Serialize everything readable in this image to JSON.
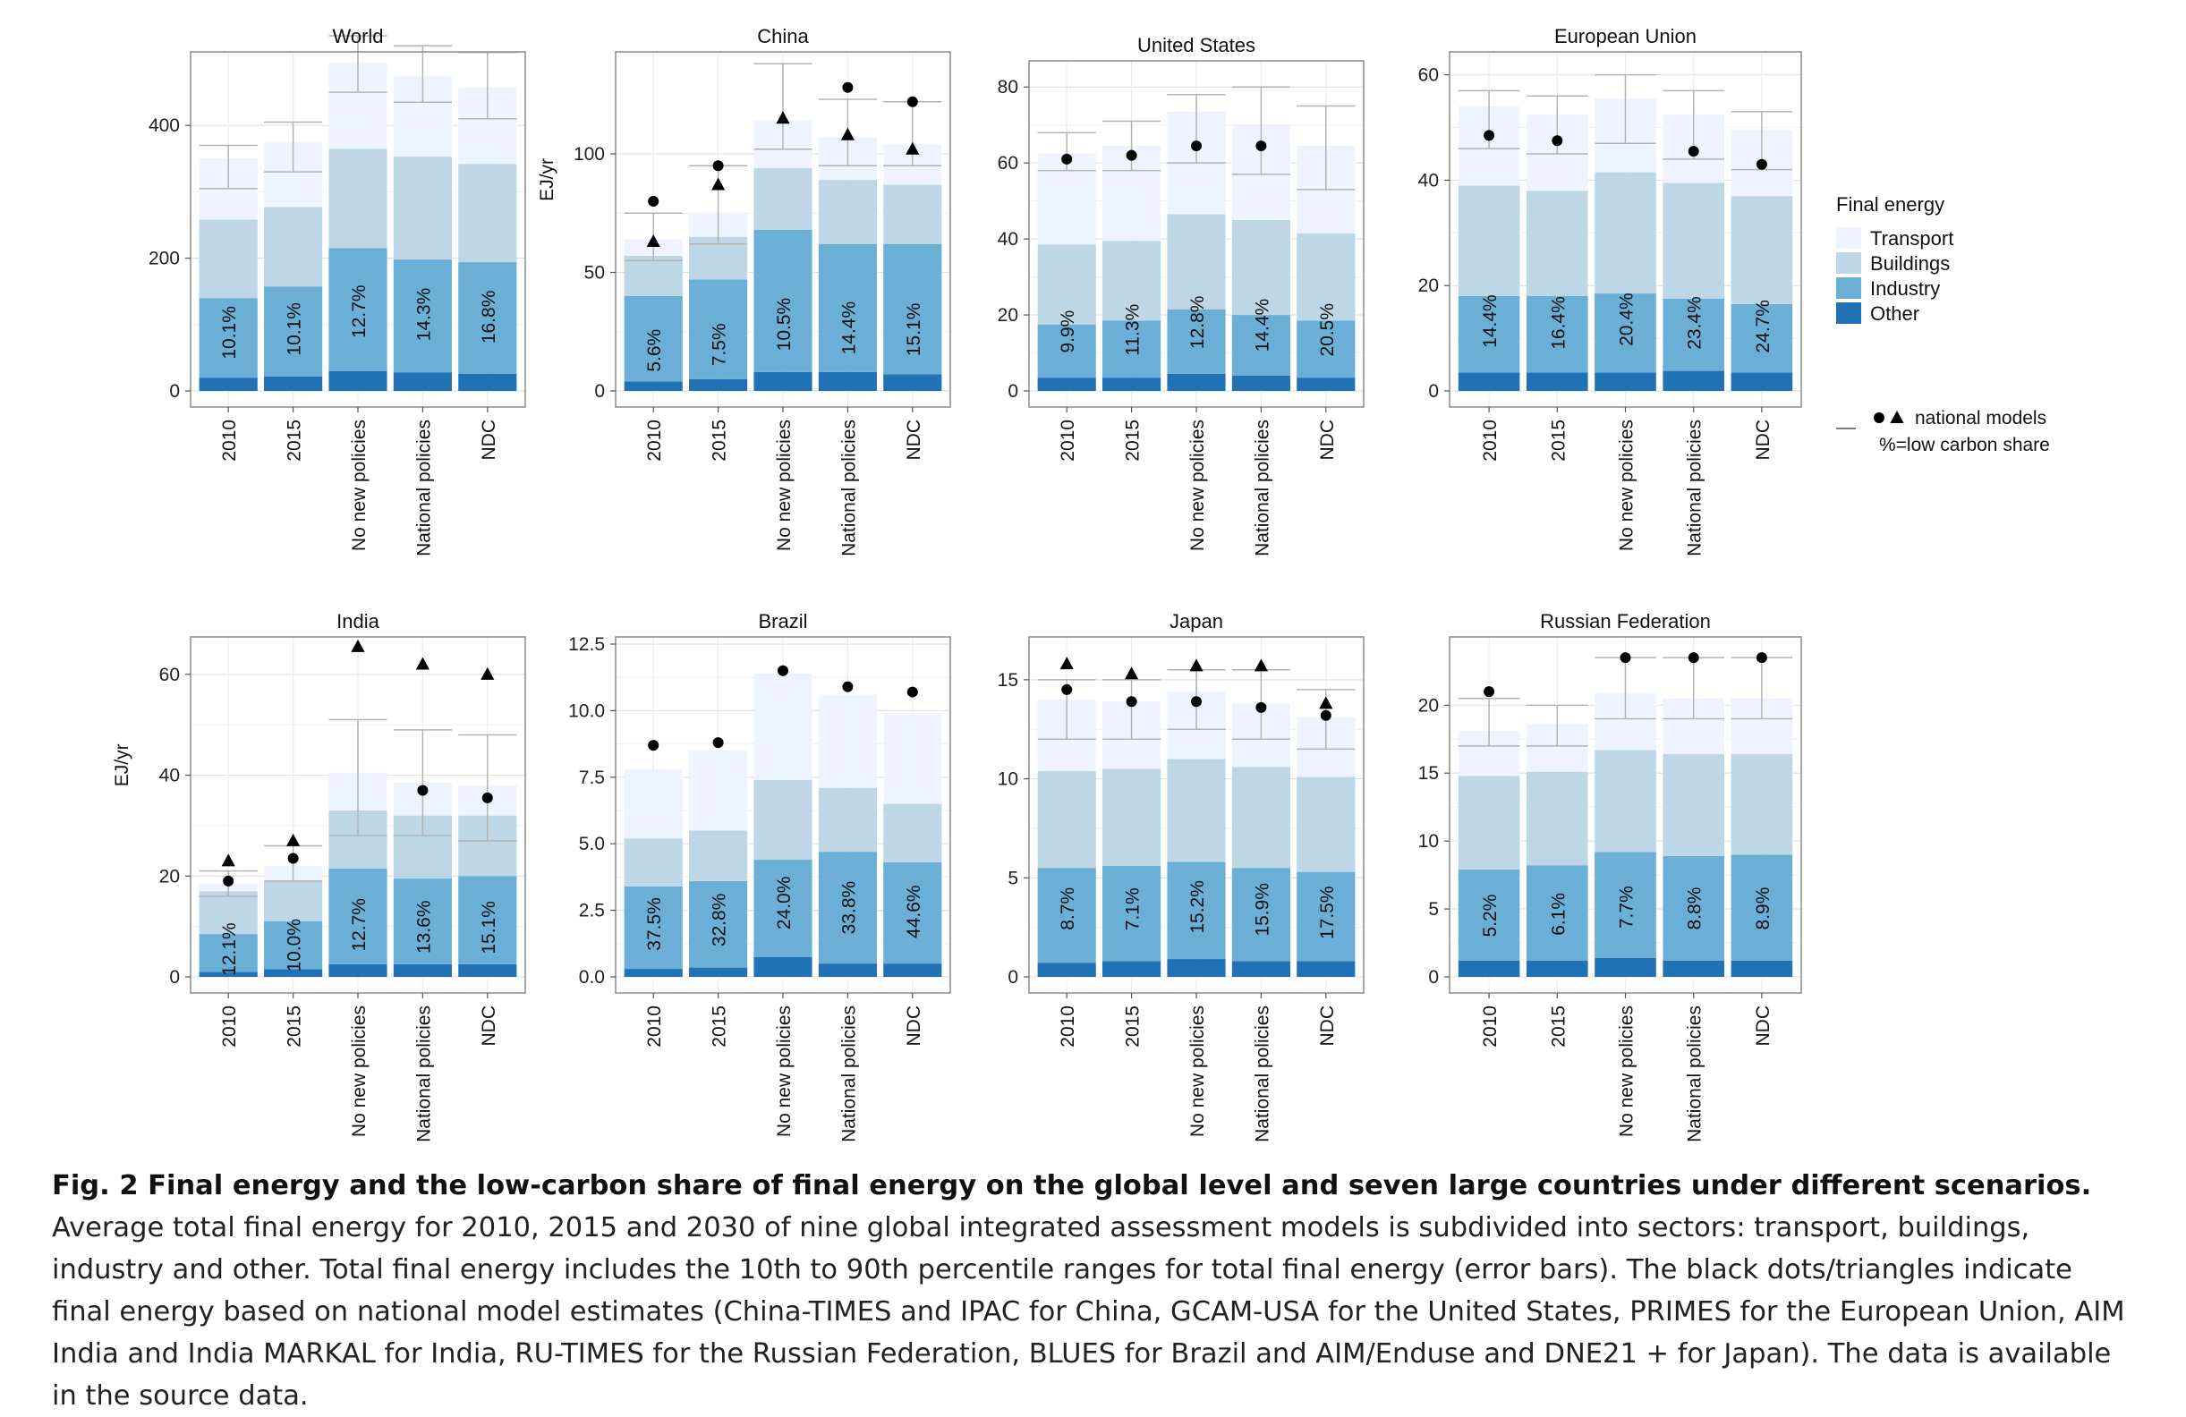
{
  "legend": {
    "title": "Final energy",
    "items": [
      {
        "label": "Transport",
        "color": "#eff3ff"
      },
      {
        "label": "Buildings",
        "color": "#bdd7e7"
      },
      {
        "label": "Industry",
        "color": "#6baed6"
      },
      {
        "label": "Other",
        "color": "#2171b5"
      }
    ],
    "national_models_label": "national models",
    "share_note": "%=low carbon share"
  },
  "chart_data": [
    {
      "type": "bar",
      "stacked": true,
      "title": "World",
      "ylabel": "",
      "ylim": [
        0,
        500
      ],
      "yticks": [
        0,
        200,
        400
      ],
      "categories": [
        "2010",
        "2015",
        "No new policies",
        "National policies",
        "NDC"
      ],
      "series": [
        {
          "name": "Other",
          "values": [
            20,
            22,
            30,
            28,
            26
          ]
        },
        {
          "name": "Industry",
          "values": [
            120,
            135,
            185,
            170,
            168
          ]
        },
        {
          "name": "Buildings",
          "values": [
            118,
            120,
            150,
            155,
            148
          ]
        },
        {
          "name": "Transport",
          "values": [
            92,
            98,
            130,
            122,
            115
          ]
        }
      ],
      "shares": [
        "10.1%",
        "10.1%",
        "12.7%",
        "14.3%",
        "16.8%"
      ],
      "error_bars": [
        [
          305,
          370
        ],
        [
          330,
          405
        ],
        [
          450,
          535
        ],
        [
          435,
          520
        ],
        [
          410,
          510
        ]
      ],
      "national_models": []
    },
    {
      "type": "bar",
      "stacked": true,
      "title": "China",
      "ylabel": "EJ/yr",
      "ylim": [
        0,
        140
      ],
      "yticks": [
        0,
        50,
        100
      ],
      "categories": [
        "2010",
        "2015",
        "No new policies",
        "National policies",
        "NDC"
      ],
      "series": [
        {
          "name": "Other",
          "values": [
            4,
            5,
            8,
            8,
            7
          ]
        },
        {
          "name": "Industry",
          "values": [
            36,
            42,
            60,
            54,
            55
          ]
        },
        {
          "name": "Buildings",
          "values": [
            17,
            18,
            26,
            27,
            25
          ]
        },
        {
          "name": "Transport",
          "values": [
            7,
            10,
            20,
            18,
            17
          ]
        }
      ],
      "shares": [
        "5.6%",
        "7.5%",
        "10.5%",
        "14.4%",
        "15.1%"
      ],
      "error_bars": [
        [
          55,
          75
        ],
        [
          62,
          95
        ],
        [
          102,
          138
        ],
        [
          95,
          123
        ],
        [
          95,
          122
        ]
      ],
      "national_models": [
        {
          "marker": "dot",
          "values": [
            80,
            95,
            null,
            128,
            122
          ]
        },
        {
          "marker": "triangle",
          "values": [
            63,
            87,
            115,
            108,
            102
          ]
        }
      ]
    },
    {
      "type": "bar",
      "stacked": true,
      "title": "United States",
      "ylabel": "",
      "ylim": [
        0,
        85
      ],
      "yticks": [
        0,
        20,
        40,
        60,
        80
      ],
      "categories": [
        "2010",
        "2015",
        "No new policies",
        "National policies",
        "NDC"
      ],
      "series": [
        {
          "name": "Other",
          "values": [
            3.5,
            3.5,
            4.5,
            4,
            3.5
          ]
        },
        {
          "name": "Industry",
          "values": [
            14,
            15,
            17,
            16,
            15
          ]
        },
        {
          "name": "Buildings",
          "values": [
            21,
            21,
            25,
            25,
            23
          ]
        },
        {
          "name": "Transport",
          "values": [
            24,
            25,
            27,
            25,
            23
          ]
        }
      ],
      "shares": [
        "9.9%",
        "11.3%",
        "12.8%",
        "14.4%",
        "20.5%"
      ],
      "error_bars": [
        [
          58,
          68
        ],
        [
          58,
          71
        ],
        [
          60,
          78
        ],
        [
          57,
          80
        ],
        [
          53,
          75
        ]
      ],
      "national_models": [
        {
          "marker": "dot",
          "values": [
            61,
            62,
            64.5,
            64.5,
            null
          ]
        }
      ]
    },
    {
      "type": "bar",
      "stacked": true,
      "title": "European Union",
      "ylabel": "",
      "ylim": [
        0,
        63
      ],
      "yticks": [
        0,
        20,
        40,
        60
      ],
      "categories": [
        "2010",
        "2015",
        "No new policies",
        "National policies",
        "NDC"
      ],
      "series": [
        {
          "name": "Other",
          "values": [
            3.5,
            3.5,
            3.5,
            3.8,
            3.5
          ]
        },
        {
          "name": "Industry",
          "values": [
            14.5,
            14.5,
            15,
            13.7,
            13
          ]
        },
        {
          "name": "Buildings",
          "values": [
            21,
            20,
            23,
            22,
            20.5
          ]
        },
        {
          "name": "Transport",
          "values": [
            15,
            14.5,
            14,
            13,
            12.5
          ]
        }
      ],
      "shares": [
        "14.4%",
        "16.4%",
        "20.4%",
        "23.4%",
        "24.7%"
      ],
      "error_bars": [
        [
          46,
          57
        ],
        [
          45,
          56
        ],
        [
          47,
          60
        ],
        [
          44,
          57
        ],
        [
          42,
          53
        ]
      ],
      "national_models": [
        {
          "marker": "dot",
          "values": [
            48.5,
            47.5,
            null,
            45.5,
            43
          ]
        }
      ]
    },
    {
      "type": "bar",
      "stacked": true,
      "title": "India",
      "ylabel": "EJ/yr",
      "ylim": [
        0,
        66
      ],
      "yticks": [
        0,
        20,
        40,
        60
      ],
      "categories": [
        "2010",
        "2015",
        "No new policies",
        "National policies",
        "NDC"
      ],
      "series": [
        {
          "name": "Other",
          "values": [
            1,
            1.5,
            2.5,
            2.5,
            2.5
          ]
        },
        {
          "name": "Industry",
          "values": [
            7.5,
            9.5,
            19,
            17,
            17.5
          ]
        },
        {
          "name": "Buildings",
          "values": [
            8.5,
            8,
            11.5,
            12.5,
            12
          ]
        },
        {
          "name": "Transport",
          "values": [
            1.5,
            3,
            7.5,
            6.5,
            6
          ]
        }
      ],
      "shares": [
        "12.1%",
        "10.0%",
        "12.7%",
        "13.6%",
        "15.1%"
      ],
      "error_bars": [
        [
          16,
          21
        ],
        [
          19,
          26
        ],
        [
          28,
          51
        ],
        [
          28,
          49
        ],
        [
          27,
          48
        ]
      ],
      "national_models": [
        {
          "marker": "dot",
          "values": [
            19,
            23.5,
            null,
            37,
            35.5
          ]
        },
        {
          "marker": "triangle",
          "values": [
            23,
            27,
            65.5,
            62,
            60
          ]
        }
      ]
    },
    {
      "type": "bar",
      "stacked": true,
      "title": "Brazil",
      "ylabel": "",
      "ylim": [
        0,
        12.5
      ],
      "yticks": [
        0.0,
        2.5,
        5.0,
        7.5,
        10.0,
        12.5
      ],
      "categories": [
        "2010",
        "2015",
        "No new policies",
        "National policies",
        "NDC"
      ],
      "series": [
        {
          "name": "Other",
          "values": [
            0.3,
            0.35,
            0.75,
            0.5,
            0.5
          ]
        },
        {
          "name": "Industry",
          "values": [
            3.1,
            3.25,
            3.65,
            4.2,
            3.8
          ]
        },
        {
          "name": "Buildings",
          "values": [
            1.8,
            1.9,
            3.0,
            2.4,
            2.2
          ]
        },
        {
          "name": "Transport",
          "values": [
            2.6,
            3.0,
            4.0,
            3.5,
            3.4
          ]
        }
      ],
      "shares": [
        "37.5%",
        "32.8%",
        "24.0%",
        "33.8%",
        "44.6%"
      ],
      "error_bars": [],
      "national_models": [
        {
          "marker": "dot",
          "values": [
            8.7,
            8.8,
            11.5,
            10.9,
            10.7
          ]
        }
      ]
    },
    {
      "type": "bar",
      "stacked": true,
      "title": "Japan",
      "ylabel": "",
      "ylim": [
        0,
        16.8
      ],
      "yticks": [
        0,
        5,
        10,
        15
      ],
      "categories": [
        "2010",
        "2015",
        "No new policies",
        "National policies",
        "NDC"
      ],
      "series": [
        {
          "name": "Other",
          "values": [
            0.7,
            0.8,
            0.9,
            0.8,
            0.8
          ]
        },
        {
          "name": "Industry",
          "values": [
            4.8,
            4.8,
            4.9,
            4.7,
            4.5
          ]
        },
        {
          "name": "Buildings",
          "values": [
            4.9,
            4.9,
            5.2,
            5.1,
            4.8
          ]
        },
        {
          "name": "Transport",
          "values": [
            3.6,
            3.4,
            3.4,
            3.2,
            3.0
          ]
        }
      ],
      "shares": [
        "8.7%",
        "7.1%",
        "15.2%",
        "15.9%",
        "17.5%"
      ],
      "error_bars": [
        [
          12,
          15
        ],
        [
          12,
          15
        ],
        [
          12.5,
          15.5
        ],
        [
          12,
          15.5
        ],
        [
          11.5,
          14.5
        ]
      ],
      "national_models": [
        {
          "marker": "dot",
          "values": [
            14.5,
            13.9,
            13.9,
            13.6,
            13.2
          ]
        },
        {
          "marker": "triangle",
          "values": [
            15.8,
            15.3,
            15.7,
            15.7,
            13.8
          ]
        }
      ]
    },
    {
      "type": "bar",
      "stacked": true,
      "title": "Russian Federation",
      "ylabel": "",
      "ylim": [
        0,
        24.5
      ],
      "yticks": [
        0,
        5,
        10,
        15,
        20
      ],
      "categories": [
        "2010",
        "2015",
        "No new policies",
        "National policies",
        "NDC"
      ],
      "series": [
        {
          "name": "Other",
          "values": [
            1.2,
            1.2,
            1.4,
            1.2,
            1.2
          ]
        },
        {
          "name": "Industry",
          "values": [
            6.7,
            7.0,
            7.8,
            7.7,
            7.8
          ]
        },
        {
          "name": "Buildings",
          "values": [
            6.9,
            6.9,
            7.5,
            7.5,
            7.4
          ]
        },
        {
          "name": "Transport",
          "values": [
            3.3,
            3.5,
            4.2,
            4.1,
            4.1
          ]
        }
      ],
      "shares": [
        "5.2%",
        "6.1%",
        "7.7%",
        "8.8%",
        "8.9%"
      ],
      "error_bars": [
        [
          17,
          20.5
        ],
        [
          17,
          20
        ],
        [
          19,
          23.5
        ],
        [
          19,
          23.5
        ],
        [
          19,
          23.5
        ]
      ],
      "national_models": [
        {
          "marker": "dot",
          "values": [
            21,
            null,
            23.5,
            23.5,
            23.5
          ]
        }
      ]
    }
  ],
  "caption": {
    "bold": "Fig. 2 Final energy and the low-carbon share of final energy on the global level and seven large countries under different scenarios.",
    "text": " Average total final energy for 2010, 2015 and 2030 of nine global integrated assessment models is subdivided into sectors: transport, buildings, industry and other. Total final energy includes the 10th to 90th percentile ranges for total final energy (error bars). The black dots/triangles indicate final energy based on national model estimates (China-TIMES and IPAC for China, GCAM-USA for the United States, PRIMES for the European Union, AIM India and India MARKAL for India, RU-TIMES for the Russian Federation, BLUES for Brazil and AIM/Enduse and DNE21 + for Japan). The data is available in the source data."
  }
}
